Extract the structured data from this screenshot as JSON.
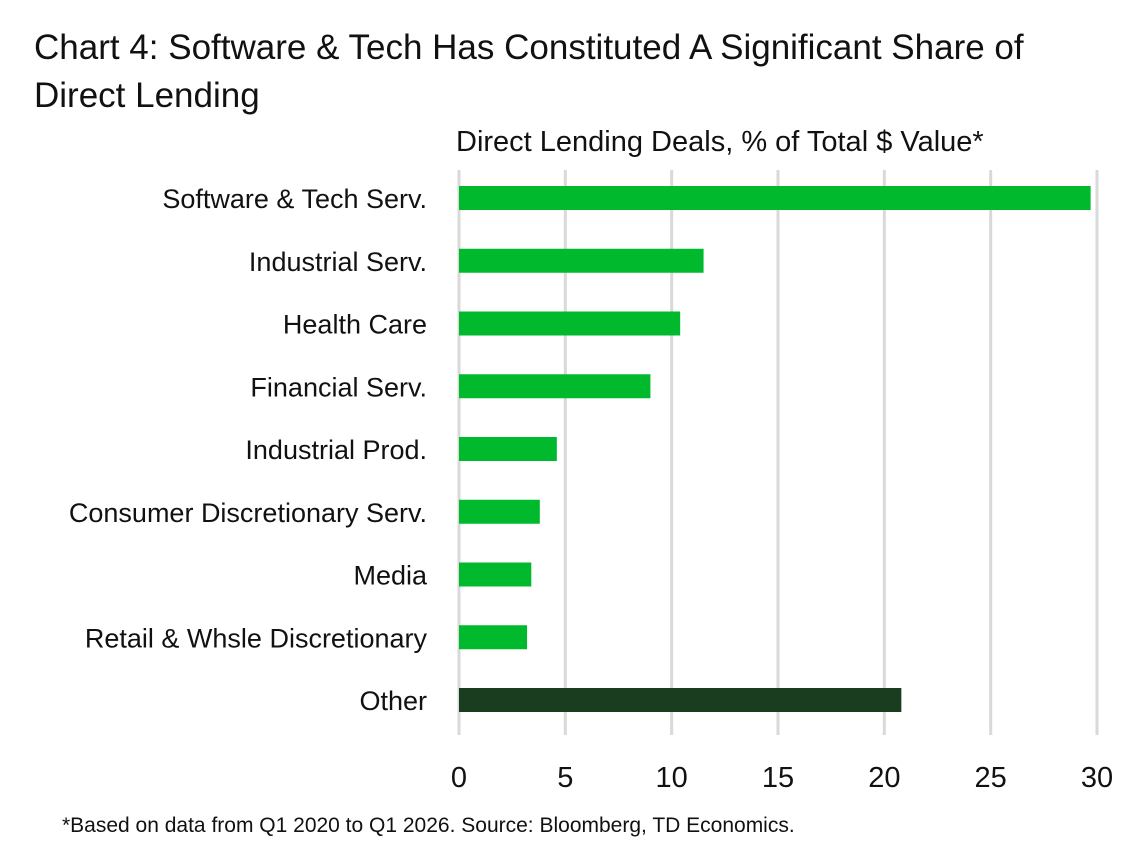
{
  "title": "Chart 4: Software & Tech Has Constituted A Significant Share of Direct Lending",
  "footnote": "*Based on data from Q1 2020 to Q1 2026. Source: Bloomberg, TD Economics.",
  "colors": {
    "bar": "#00b92d",
    "highlight": "#1b3d1f",
    "grid": "#d9d9d9"
  },
  "chart_data": {
    "type": "bar",
    "orientation": "horizontal",
    "title": "Direct Lending Deals, % of Total $ Value*",
    "categories": [
      "Software & Tech Serv.",
      "Industrial Serv.",
      "Health Care",
      "Financial Serv.",
      "Industrial Prod.",
      "Consumer Discretionary Serv.",
      "Media",
      "Retail & Whsle Discretionary",
      "Other"
    ],
    "values": [
      29.7,
      11.5,
      10.4,
      9.0,
      4.6,
      3.8,
      3.4,
      3.2,
      20.8
    ],
    "xlim": [
      0,
      30
    ],
    "xticks": [
      0,
      5,
      10,
      15,
      20,
      25,
      30
    ],
    "grid": "vertical",
    "legend": "none"
  }
}
